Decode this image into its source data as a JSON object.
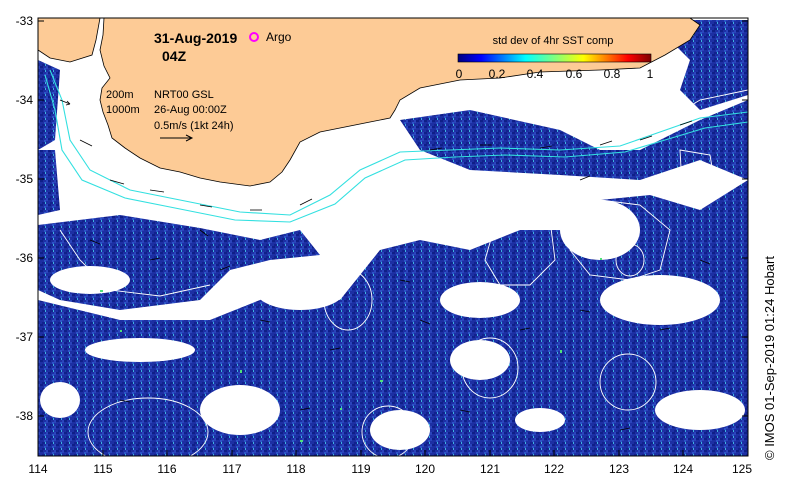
{
  "map": {
    "date": "31-Aug-2019",
    "time": "04Z",
    "argo_label": "Argo",
    "legend_title": "std dev of 4hr SST comp",
    "legend_ticks": [
      "0",
      "0.2",
      "0.4",
      "0.6",
      "0.8",
      "1"
    ],
    "contour_labels": [
      "200m",
      "1000m"
    ],
    "product_label": "NRT00 GSL",
    "product_date": "26-Aug 00:00Z",
    "velocity_scale": "0.5m/s (1kt 24h)",
    "credit": "© IMOS 01-Sep-2019 01:24 Hobart",
    "lat_ticks": [
      "-33",
      "-34",
      "-35",
      "-36",
      "-37",
      "-38"
    ],
    "lon_ticks": [
      "114",
      "115",
      "116",
      "117",
      "118",
      "119",
      "120",
      "121",
      "122",
      "123",
      "124",
      "125"
    ],
    "colors": {
      "land": "#fdcb96",
      "ocean_data": "#1a2a9e",
      "contour": "#33e0e0",
      "sla_contour": "#ffffff",
      "argo_marker": "#ff00ff"
    }
  }
}
